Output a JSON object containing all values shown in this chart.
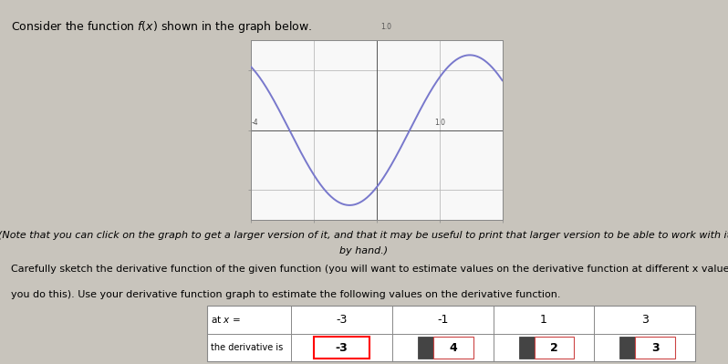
{
  "title_text": "Consider the function f(x) shown in the graph below.",
  "note_text": "(Note that you can click on the graph to get a larger version of it, and that it may be useful to print that larger version to be able to work with it\nby hand.)",
  "body_text1": "Carefully sketch the derivative function of the given function (you will want to estimate values on the derivative function at different x values as",
  "body_text2": "you do this). Use your derivative function graph to estimate the following values on the derivative function.",
  "curve_color": "#7878cc",
  "background_color": "#c8c4bc",
  "graph_bg": "#f8f8f8",
  "grid_color": "#bbbbbb",
  "table_x_values": [
    "-3",
    "-1",
    "1",
    "3"
  ],
  "table_deriv_values": [
    "-3",
    "4",
    "2",
    "3"
  ],
  "graph_xlim": [
    -4,
    4
  ],
  "graph_ylim": [
    -3,
    3
  ]
}
